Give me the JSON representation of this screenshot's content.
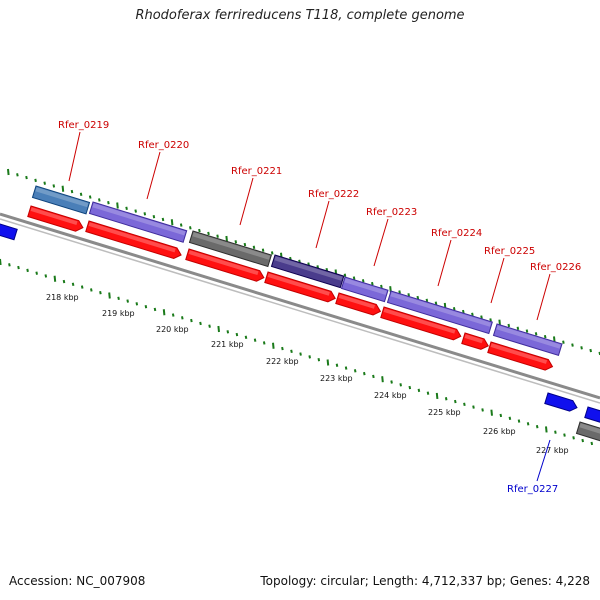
{
  "title": "Rhodoferax ferrireducens T118, complete genome",
  "footer": {
    "accession": "Accession: NC_007908",
    "summary": "Topology: circular; Length: 4,712,337 bp; Genes: 4,228"
  },
  "colors": {
    "cds_red": "#ff1010",
    "backbone": "#8a8a8a",
    "tick_green": "#1a7a1a",
    "label_red": "#cc0000",
    "label_blue": "#0000cc",
    "gene_blue": "#1010ee",
    "feature_purple": "#7b68d8",
    "feature_dark_purple": "#4a3c8c",
    "feature_steelblue": "#4a7fb8",
    "feature_gray": "#6a6a6a"
  },
  "kbp_labels": [
    "218 kbp",
    "219 kbp",
    "220 kbp",
    "221 kbp",
    "222 kbp",
    "223 kbp",
    "224 kbp",
    "225 kbp",
    "226 kbp",
    "227 kbp"
  ],
  "gene_labels": [
    {
      "text": "Rfer_0219",
      "color": "red"
    },
    {
      "text": "Rfer_0220",
      "color": "red"
    },
    {
      "text": "Rfer_0221",
      "color": "red"
    },
    {
      "text": "Rfer_0222",
      "color": "red"
    },
    {
      "text": "Rfer_0223",
      "color": "red"
    },
    {
      "text": "Rfer_0224",
      "color": "red"
    },
    {
      "text": "Rfer_0225",
      "color": "red"
    },
    {
      "text": "Rfer_0226",
      "color": "red"
    },
    {
      "text": "Rfer_0227",
      "color": "blue"
    }
  ]
}
